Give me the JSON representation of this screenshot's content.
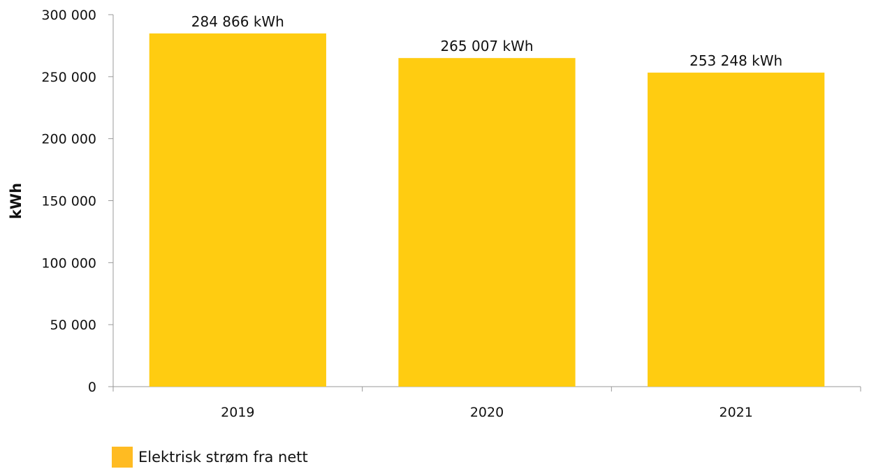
{
  "chart_data": {
    "type": "bar",
    "categories": [
      "2019",
      "2020",
      "2021"
    ],
    "series": [
      {
        "name": "Elektrisk strøm fra nett",
        "values": [
          284866,
          265007,
          253248
        ]
      }
    ],
    "data_labels": [
      "284 866 kWh",
      "265 007 kWh",
      "253 248 kWh"
    ],
    "ylabel": "kWh",
    "ylim": [
      0,
      300000
    ],
    "yticks": [
      0,
      50000,
      100000,
      150000,
      200000,
      250000,
      300000
    ],
    "ytick_labels": [
      "0",
      "50 000",
      "100 000",
      "150 000",
      "200 000",
      "250 000",
      "300 000"
    ],
    "grid": false,
    "legend": "bottom-left",
    "colors": {
      "bar": "#FFCC11",
      "legend_swatch": "#FFBB22",
      "axis": "#999999"
    }
  }
}
